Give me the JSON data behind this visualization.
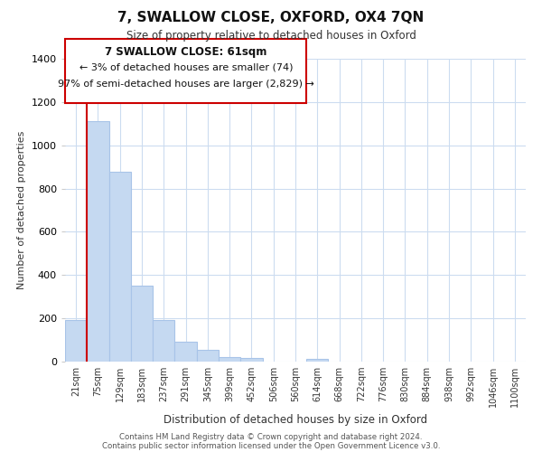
{
  "title": "7, SWALLOW CLOSE, OXFORD, OX4 7QN",
  "subtitle": "Size of property relative to detached houses in Oxford",
  "xlabel": "Distribution of detached houses by size in Oxford",
  "ylabel": "Number of detached properties",
  "categories": [
    "21sqm",
    "75sqm",
    "129sqm",
    "183sqm",
    "237sqm",
    "291sqm",
    "345sqm",
    "399sqm",
    "452sqm",
    "506sqm",
    "560sqm",
    "614sqm",
    "668sqm",
    "722sqm",
    "776sqm",
    "830sqm",
    "884sqm",
    "938sqm",
    "992sqm",
    "1046sqm",
    "1100sqm"
  ],
  "values": [
    193,
    1113,
    878,
    350,
    193,
    90,
    55,
    20,
    15,
    0,
    0,
    12,
    0,
    0,
    0,
    0,
    0,
    0,
    0,
    0,
    0
  ],
  "bar_color": "#c5d9f1",
  "bar_edge_color": "#a8c4e8",
  "highlight_color": "#cc0000",
  "ylim": [
    0,
    1400
  ],
  "yticks": [
    0,
    200,
    400,
    600,
    800,
    1000,
    1200,
    1400
  ],
  "annotation_title": "7 SWALLOW CLOSE: 61sqm",
  "annotation_line1": "← 3% of detached houses are smaller (74)",
  "annotation_line2": "97% of semi-detached houses are larger (2,829) →",
  "footer_line1": "Contains HM Land Registry data © Crown copyright and database right 2024.",
  "footer_line2": "Contains public sector information licensed under the Open Government Licence v3.0.",
  "background_color": "#ffffff",
  "grid_color": "#ccdcf0"
}
